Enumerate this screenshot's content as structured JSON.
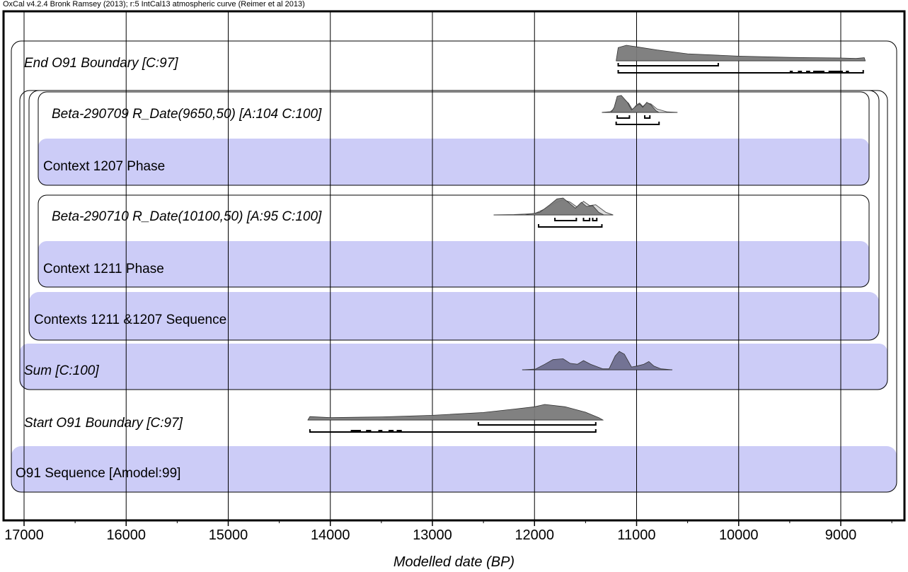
{
  "header": {
    "title": "OxCal v4.2.4 Bronk Ramsey (2013); r:5 IntCal13 atmospheric curve (Reimer et al 2013)"
  },
  "chart_data": {
    "type": "area",
    "title": "OxCal v4.2.4 Bronk Ramsey (2013); r:5 IntCal13 atmospheric curve (Reimer et al 2013)",
    "xlabel": "Modelled date (BP)",
    "ylabel": "",
    "xlim": [
      17250,
      8350
    ],
    "x_reversed": true,
    "grid": true,
    "ticks": [
      "17000",
      "16000",
      "15000",
      "14000",
      "13000",
      "12000",
      "11000",
      "10000",
      "9000"
    ],
    "tick_values": [
      17000,
      16000,
      15000,
      14000,
      13000,
      12000,
      11000,
      10000,
      9000
    ],
    "groups": [
      {
        "label": "O91 Sequence [Amodel:99]",
        "kind": "sequence"
      },
      {
        "label": "Contexts 1211 &1207 Sequence",
        "kind": "sequence"
      },
      {
        "label": "Context 1211 Phase",
        "kind": "phase"
      },
      {
        "label": "Context 1207 Phase",
        "kind": "phase"
      }
    ],
    "series": [
      {
        "name": "End O91 Boundary [C:97]",
        "italic": true,
        "posterior": [
          [
            11200,
            0
          ],
          [
            11180,
            0.85
          ],
          [
            11100,
            1
          ],
          [
            11000,
            0.9
          ],
          [
            10800,
            0.7
          ],
          [
            10500,
            0.45
          ],
          [
            10000,
            0.3
          ],
          [
            9500,
            0.22
          ],
          [
            9000,
            0.18
          ],
          [
            8850,
            0.15
          ],
          [
            8770,
            0.2
          ],
          [
            8760,
            0
          ]
        ],
        "range_68": [
          [
            11180,
            10200
          ]
        ],
        "range_95": [
          [
            11180,
            8780
          ]
        ],
        "range_95_extra": [
          [
            9500,
            9470
          ],
          [
            9420,
            9380
          ],
          [
            9340,
            9300
          ],
          [
            9270,
            9160
          ],
          [
            9120,
            8980
          ],
          [
            8950,
            8920
          ]
        ]
      },
      {
        "name": "Beta-290709 R_Date(9650,50) [A:104 C:100]",
        "italic": true,
        "prior": [
          [
            11340,
            0
          ],
          [
            11260,
            0.04
          ],
          [
            11220,
            0.2
          ],
          [
            11190,
            0.75
          ],
          [
            11150,
            0.85
          ],
          [
            11080,
            0.55
          ],
          [
            11040,
            0.15
          ],
          [
            11000,
            0.45
          ],
          [
            10970,
            0.55
          ],
          [
            10940,
            0.35
          ],
          [
            10900,
            0.55
          ],
          [
            10860,
            0.5
          ],
          [
            10800,
            0.2
          ],
          [
            10700,
            0.03
          ],
          [
            10600,
            0
          ]
        ],
        "posterior": [
          [
            11250,
            0
          ],
          [
            11220,
            0.3
          ],
          [
            11190,
            0.95
          ],
          [
            11150,
            1
          ],
          [
            11090,
            0.6
          ],
          [
            11050,
            0.15
          ],
          [
            11000,
            0.4
          ],
          [
            10970,
            0.5
          ],
          [
            10940,
            0.3
          ],
          [
            10900,
            0.6
          ],
          [
            10860,
            0.45
          ],
          [
            10810,
            0.1
          ],
          [
            10780,
            0
          ]
        ],
        "range_68": [
          [
            11190,
            11070
          ],
          [
            10920,
            10870
          ]
        ],
        "range_95": [
          [
            11200,
            10780
          ]
        ]
      },
      {
        "name": "Beta-290710 R_Date(10100,50) [A:95 C:100]",
        "italic": true,
        "prior": [
          [
            12400,
            0
          ],
          [
            12200,
            0.02
          ],
          [
            12000,
            0.08
          ],
          [
            11900,
            0.35
          ],
          [
            11800,
            0.7
          ],
          [
            11720,
            0.9
          ],
          [
            11650,
            0.75
          ],
          [
            11580,
            0.45
          ],
          [
            11520,
            0.8
          ],
          [
            11460,
            0.55
          ],
          [
            11400,
            0.6
          ],
          [
            11300,
            0.15
          ],
          [
            11230,
            0
          ]
        ],
        "posterior": [
          [
            12100,
            0
          ],
          [
            11950,
            0.15
          ],
          [
            11850,
            0.6
          ],
          [
            11780,
            0.95
          ],
          [
            11720,
            1
          ],
          [
            11660,
            0.7
          ],
          [
            11600,
            0.4
          ],
          [
            11540,
            0.75
          ],
          [
            11490,
            0.5
          ],
          [
            11430,
            0.55
          ],
          [
            11370,
            0.15
          ],
          [
            11320,
            0
          ]
        ],
        "range_68": [
          [
            11800,
            11590
          ],
          [
            11520,
            11460
          ],
          [
            11430,
            11390
          ]
        ],
        "range_95": [
          [
            11960,
            11340
          ]
        ]
      },
      {
        "name": "Sum [C:100]",
        "italic": true,
        "posterior": [
          [
            12120,
            0
          ],
          [
            11990,
            0.04
          ],
          [
            11900,
            0.3
          ],
          [
            11820,
            0.55
          ],
          [
            11720,
            0.6
          ],
          [
            11650,
            0.35
          ],
          [
            11580,
            0.3
          ],
          [
            11520,
            0.5
          ],
          [
            11450,
            0.3
          ],
          [
            11330,
            0.05
          ],
          [
            11270,
            0.05
          ],
          [
            11210,
            0.75
          ],
          [
            11170,
            1
          ],
          [
            11120,
            0.85
          ],
          [
            11050,
            0.15
          ],
          [
            11000,
            0.2
          ],
          [
            10930,
            0.3
          ],
          [
            10880,
            0.45
          ],
          [
            10830,
            0.2
          ],
          [
            10760,
            0.05
          ],
          [
            10650,
            0
          ]
        ]
      },
      {
        "name": "Start O91 Boundary [C:97]",
        "italic": true,
        "posterior": [
          [
            14220,
            0
          ],
          [
            14200,
            0.22
          ],
          [
            14000,
            0.15
          ],
          [
            13500,
            0.2
          ],
          [
            13000,
            0.3
          ],
          [
            12500,
            0.48
          ],
          [
            12200,
            0.7
          ],
          [
            12000,
            0.85
          ],
          [
            11900,
            1
          ],
          [
            11700,
            0.85
          ],
          [
            11500,
            0.5
          ],
          [
            11370,
            0.15
          ],
          [
            11330,
            0
          ]
        ],
        "range_68": [
          [
            12550,
            11400
          ]
        ],
        "range_95": [
          [
            14200,
            11400
          ]
        ],
        "range_95_extra": [
          [
            13800,
            13700
          ],
          [
            13650,
            13600
          ],
          [
            13530,
            13490
          ],
          [
            13430,
            13380
          ],
          [
            13350,
            13300
          ]
        ]
      }
    ]
  }
}
